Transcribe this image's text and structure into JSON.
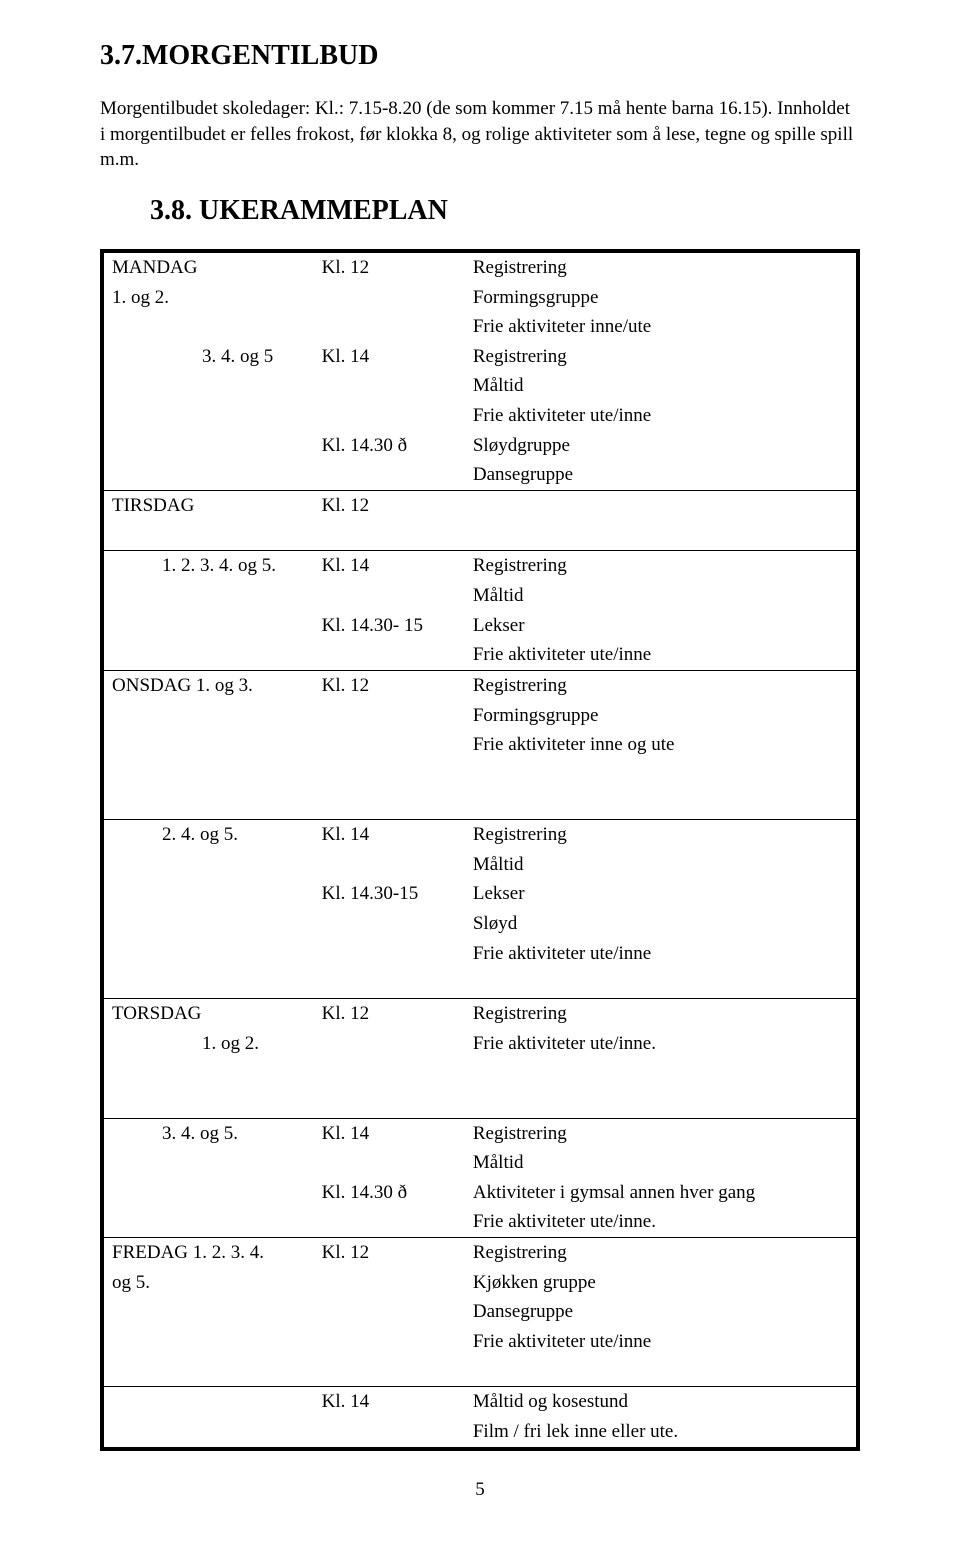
{
  "heading1": "3.7.MORGENTILBUD",
  "intro": "Morgentilbudet skoledager: Kl.: 7.15-8.20 (de som kommer 7.15 må hente barna 16.15). Innholdet i morgentilbudet er felles frokost, før klokka 8, og rolige aktiviteter som å lese, tegne og spille spill m.m.",
  "heading2": "3.8. UKERAMMEPLAN",
  "page_number": "5",
  "rows": [
    {
      "day": "MANDAG",
      "time": "Kl. 12",
      "act": "Registrering",
      "hair": false
    },
    {
      "day": "1. og 2.",
      "time": "",
      "act": "Formingsgruppe",
      "hair": false
    },
    {
      "day": "",
      "time": "",
      "act": "Frie aktiviteter inne/ute",
      "hair": false
    },
    {
      "day": "3. 4. og 5",
      "time": "Kl. 14",
      "act": "Registrering",
      "hair": false,
      "indent": 2
    },
    {
      "day": "",
      "time": "",
      "act": "Måltid",
      "hair": false
    },
    {
      "day": "",
      "time": "",
      "act": "Frie aktiviteter ute/inne",
      "hair": false
    },
    {
      "day": "",
      "time": "Kl. 14.30 ð",
      "act": "Sløydgruppe",
      "hair": false
    },
    {
      "day": "",
      "time": "",
      "act": "Dansegruppe",
      "hair": false
    },
    {
      "day": "TIRSDAG",
      "time": "Kl. 12",
      "act": "",
      "hair": true
    },
    {
      "day": "",
      "time": "",
      "act": "",
      "hair": false,
      "spacer": true
    },
    {
      "day": "1. 2. 3. 4. og 5.",
      "time": "Kl. 14",
      "act": "Registrering",
      "hair": true,
      "indent": 1
    },
    {
      "day": "",
      "time": "",
      "act": "Måltid",
      "hair": false
    },
    {
      "day": "",
      "time": "Kl. 14.30- 15",
      "act": "Lekser",
      "hair": false
    },
    {
      "day": "",
      "time": "",
      "act": "Frie aktiviteter ute/inne",
      "hair": false
    },
    {
      "day": "ONSDAG     1. og 3.",
      "time": "Kl. 12",
      "act": "Registrering",
      "hair": true
    },
    {
      "day": "",
      "time": "",
      "act": "Formingsgruppe",
      "hair": false
    },
    {
      "day": "",
      "time": "",
      "act": "Frie aktiviteter inne og ute",
      "hair": false
    },
    {
      "day": "",
      "time": "",
      "act": "",
      "hair": false,
      "spacer": true
    },
    {
      "day": "",
      "time": "",
      "act": "",
      "hair": false,
      "spacer": true
    },
    {
      "day": "2. 4. og 5.",
      "time": "Kl. 14",
      "act": "Registrering",
      "hair": true,
      "indent": 1
    },
    {
      "day": "",
      "time": "",
      "act": "Måltid",
      "hair": false
    },
    {
      "day": "",
      "time": "Kl. 14.30-15",
      "act": "Lekser",
      "hair": false
    },
    {
      "day": "",
      "time": "",
      "act": "Sløyd",
      "hair": false
    },
    {
      "day": "",
      "time": "",
      "act": "Frie aktiviteter ute/inne",
      "hair": false
    },
    {
      "day": "",
      "time": "",
      "act": "",
      "hair": false,
      "spacer": true
    },
    {
      "day": "TORSDAG",
      "time": "Kl. 12",
      "act": "Registrering",
      "hair": true
    },
    {
      "day": "1. og 2.",
      "time": "",
      "act": "Frie aktiviteter ute/inne.",
      "hair": false,
      "indent": 2
    },
    {
      "day": "",
      "time": "",
      "act": "",
      "hair": false,
      "spacer": true
    },
    {
      "day": "",
      "time": "",
      "act": "",
      "hair": false,
      "spacer": true
    },
    {
      "day": "3. 4. og 5.",
      "time": "Kl. 14",
      "act": "Registrering",
      "hair": true,
      "indent": 1
    },
    {
      "day": "",
      "time": "",
      "act": "Måltid",
      "hair": false
    },
    {
      "day": "",
      "time": "Kl. 14.30 ð",
      "act": "Aktiviteter i gymsal annen hver gang",
      "hair": false
    },
    {
      "day": "",
      "time": "",
      "act": "Frie aktiviteter ute/inne.",
      "hair": false
    },
    {
      "day": "FREDAG     1. 2. 3. 4.",
      "time": "Kl. 12",
      "act": "Registrering",
      "hair": true
    },
    {
      "day": "og 5.",
      "time": "",
      "act": "Kjøkken gruppe",
      "hair": false
    },
    {
      "day": "",
      "time": "",
      "act": "Dansegruppe",
      "hair": false
    },
    {
      "day": "",
      "time": "",
      "act": "Frie aktiviteter ute/inne",
      "hair": false
    },
    {
      "day": "",
      "time": "",
      "act": "",
      "hair": false,
      "spacer": true
    },
    {
      "day": "",
      "time": "Kl. 14",
      "act": "Måltid og kosestund",
      "hair": true
    },
    {
      "day": "",
      "time": "",
      "act": "Film / fri lek inne eller ute.",
      "hair": false
    }
  ]
}
